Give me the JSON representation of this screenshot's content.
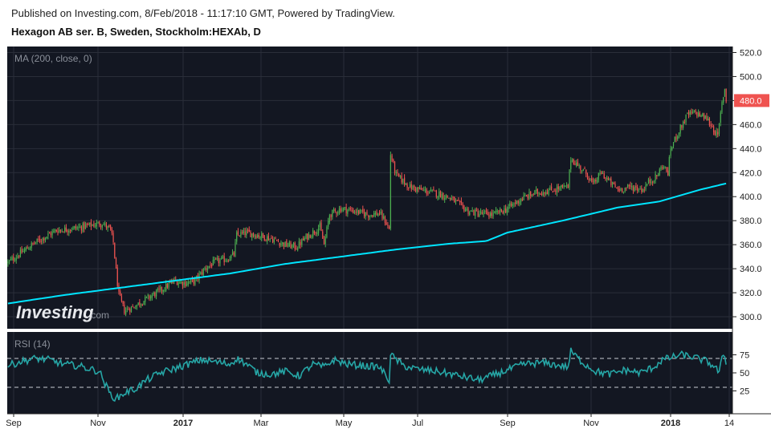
{
  "header": {
    "published": "Published on Investing.com, 8/Feb/2018 - 11:17:10 GMT, Powered by TradingView.",
    "title": "Hexagon AB ser. B, Sweden, Stockholm:HEXAb, D"
  },
  "watermark": {
    "brand": "Investing",
    "suffix": ".com"
  },
  "colors": {
    "background": "#131722",
    "up": "#26a69a",
    "up_bright": "#4caf50",
    "down": "#ef5350",
    "ma": "#00e5ff",
    "rsi": "#26a6a6",
    "grid": "#2a2e39",
    "last_price_bg": "#ef5350"
  },
  "chart_data": [
    {
      "type": "candlestick",
      "indicator_label": "MA (200, close, 0)",
      "ylim": [
        290,
        525
      ],
      "y_ticks": [
        "520.0",
        "500.0",
        "480.0",
        "460.0",
        "440.0",
        "420.0",
        "400.0",
        "380.0",
        "360.0",
        "340.0",
        "320.0",
        "300.0"
      ],
      "last_price": "480.0",
      "x_ticks": [
        "Sep",
        "Nov",
        "2017",
        "Mar",
        "May",
        "Jul",
        "Sep",
        "Nov",
        "2018",
        "14"
      ],
      "price_anchors": [
        [
          0,
          345
        ],
        [
          8,
          352
        ],
        [
          20,
          362
        ],
        [
          35,
          372
        ],
        [
          50,
          374
        ],
        [
          68,
          378
        ],
        [
          74,
          372
        ],
        [
          76,
          362
        ],
        [
          78,
          338
        ],
        [
          80,
          318
        ],
        [
          84,
          305
        ],
        [
          90,
          308
        ],
        [
          100,
          315
        ],
        [
          110,
          322
        ],
        [
          120,
          330
        ],
        [
          128,
          328
        ],
        [
          135,
          330
        ],
        [
          142,
          340
        ],
        [
          150,
          346
        ],
        [
          158,
          348
        ],
        [
          163,
          352
        ],
        [
          165,
          368
        ],
        [
          172,
          370
        ],
        [
          180,
          368
        ],
        [
          190,
          365
        ],
        [
          200,
          360
        ],
        [
          208,
          358
        ],
        [
          215,
          366
        ],
        [
          225,
          375
        ],
        [
          228,
          360
        ],
        [
          232,
          385
        ],
        [
          240,
          390
        ],
        [
          250,
          388
        ],
        [
          260,
          385
        ],
        [
          268,
          386
        ],
        [
          272,
          380
        ],
        [
          275,
          373
        ],
        [
          276,
          435
        ],
        [
          280,
          418
        ],
        [
          290,
          408
        ],
        [
          300,
          405
        ],
        [
          312,
          402
        ],
        [
          320,
          398
        ],
        [
          332,
          388
        ],
        [
          340,
          386
        ],
        [
          350,
          385
        ],
        [
          360,
          390
        ],
        [
          370,
          398
        ],
        [
          380,
          403
        ],
        [
          390,
          405
        ],
        [
          398,
          407
        ],
        [
          404,
          408
        ],
        [
          406,
          432
        ],
        [
          412,
          425
        ],
        [
          418,
          418
        ],
        [
          422,
          410
        ],
        [
          428,
          420
        ],
        [
          434,
          412
        ],
        [
          440,
          406
        ],
        [
          450,
          408
        ],
        [
          458,
          406
        ],
        [
          462,
          412
        ],
        [
          468,
          417
        ],
        [
          472,
          426
        ],
        [
          476,
          420
        ],
        [
          478,
          440
        ],
        [
          484,
          455
        ],
        [
          490,
          468
        ],
        [
          496,
          470
        ],
        [
          504,
          465
        ],
        [
          508,
          458
        ],
        [
          512,
          450
        ],
        [
          515,
          478
        ],
        [
          517,
          490
        ],
        [
          518,
          480
        ]
      ],
      "ma_anchors": [
        [
          0,
          311
        ],
        [
          40,
          318
        ],
        [
          80,
          324
        ],
        [
          120,
          330
        ],
        [
          160,
          336
        ],
        [
          200,
          344
        ],
        [
          240,
          350
        ],
        [
          280,
          356
        ],
        [
          320,
          361
        ],
        [
          345,
          363
        ],
        [
          360,
          370
        ],
        [
          400,
          380
        ],
        [
          440,
          391
        ],
        [
          470,
          396
        ],
        [
          500,
          406
        ],
        [
          518,
          411
        ]
      ],
      "n_bars": 519
    },
    {
      "type": "line",
      "indicator_label": "RSI (14)",
      "ylim": [
        0,
        100
      ],
      "y_ticks": [
        "75",
        "50",
        "25"
      ],
      "levels": [
        70,
        30
      ],
      "rsi_anchors": [
        [
          0,
          60
        ],
        [
          10,
          66
        ],
        [
          20,
          70
        ],
        [
          30,
          68
        ],
        [
          40,
          62
        ],
        [
          50,
          60
        ],
        [
          60,
          55
        ],
        [
          66,
          52
        ],
        [
          70,
          35
        ],
        [
          74,
          20
        ],
        [
          78,
          14
        ],
        [
          84,
          22
        ],
        [
          92,
          28
        ],
        [
          100,
          40
        ],
        [
          110,
          50
        ],
        [
          120,
          56
        ],
        [
          130,
          62
        ],
        [
          140,
          68
        ],
        [
          150,
          65
        ],
        [
          160,
          62
        ],
        [
          165,
          70
        ],
        [
          172,
          62
        ],
        [
          180,
          50
        ],
        [
          190,
          48
        ],
        [
          200,
          52
        ],
        [
          210,
          46
        ],
        [
          220,
          62
        ],
        [
          228,
          58
        ],
        [
          235,
          68
        ],
        [
          245,
          62
        ],
        [
          255,
          60
        ],
        [
          268,
          58
        ],
        [
          275,
          40
        ],
        [
          276,
          75
        ],
        [
          285,
          60
        ],
        [
          295,
          55
        ],
        [
          310,
          52
        ],
        [
          325,
          46
        ],
        [
          340,
          40
        ],
        [
          352,
          48
        ],
        [
          362,
          55
        ],
        [
          372,
          62
        ],
        [
          385,
          64
        ],
        [
          398,
          60
        ],
        [
          404,
          58
        ],
        [
          406,
          80
        ],
        [
          414,
          65
        ],
        [
          424,
          52
        ],
        [
          434,
          48
        ],
        [
          445,
          54
        ],
        [
          456,
          50
        ],
        [
          466,
          58
        ],
        [
          472,
          68
        ],
        [
          480,
          72
        ],
        [
          486,
          75
        ],
        [
          494,
          72
        ],
        [
          504,
          66
        ],
        [
          510,
          58
        ],
        [
          513,
          50
        ],
        [
          516,
          78
        ],
        [
          518,
          64
        ]
      ]
    }
  ]
}
